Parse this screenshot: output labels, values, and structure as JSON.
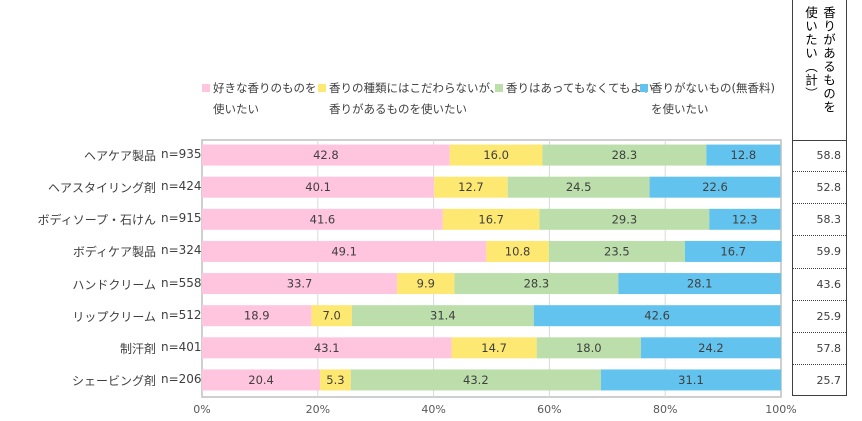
{
  "chart_data": {
    "type": "bar",
    "orientation": "horizontal",
    "stacked": "percent",
    "categories": [
      "ヘアケア製品",
      "ヘアスタイリング剤",
      "ボディソープ・石けん",
      "ボディケア製品",
      "ハンドクリーム",
      "リップクリーム",
      "制汗剤",
      "シェービング剤"
    ],
    "n_labels": [
      "n=935",
      "n=424",
      "n=915",
      "n=324",
      "n=558",
      "n=512",
      "n=401",
      "n=206"
    ],
    "series": [
      {
        "name": "好きな香りのものを使いたい",
        "legend_lines": [
          "好きな香りのものを",
          "使いたい"
        ],
        "color": "#FFC4DE",
        "values": [
          42.8,
          40.1,
          41.6,
          49.1,
          33.7,
          18.9,
          43.1,
          20.4
        ],
        "labels": [
          "42.8",
          "40.1",
          "41.6",
          "49.1",
          "33.7",
          "18.9",
          "43.1",
          "20.4"
        ]
      },
      {
        "name": "香りの種類にはこだわらないが、香りがあるものを使いたい",
        "legend_lines": [
          "香りの種類にはこだわらないが、",
          "香りがあるものを使いたい"
        ],
        "color": "#FDE872",
        "values": [
          16.0,
          12.7,
          16.7,
          10.8,
          9.9,
          7.0,
          14.7,
          5.3
        ],
        "labels": [
          "16.0",
          "12.7",
          "16.7",
          "10.8",
          "9.9",
          "7.0",
          "14.7",
          "5.3"
        ]
      },
      {
        "name": "香りはあってもなくてもよい",
        "legend_lines": [
          "香りはあってもなくてもよい"
        ],
        "color": "#BBDEAB",
        "values": [
          28.3,
          24.5,
          29.3,
          23.5,
          28.3,
          31.4,
          18.0,
          43.2
        ],
        "labels": [
          "28.3",
          "24.5",
          "29.3",
          "23.5",
          "28.3",
          "31.4",
          "18.0",
          "43.2"
        ]
      },
      {
        "name": "香りがないもの(無香料)を使いたい",
        "legend_lines": [
          "香りがないもの(無香料)",
          "を使いたい"
        ],
        "color": "#63C3EF",
        "values": [
          12.8,
          22.6,
          12.3,
          16.7,
          28.1,
          42.6,
          24.2,
          31.1
        ],
        "labels": [
          "12.8",
          "22.6",
          "12.3",
          "16.7",
          "28.1",
          "42.6",
          "24.2",
          "31.1"
        ]
      }
    ],
    "xlim": [
      0,
      100
    ],
    "x_ticks": [
      "0%",
      "20%",
      "40%",
      "60%",
      "80%",
      "100%"
    ],
    "grid": true,
    "legend_position": "top",
    "summary_column": {
      "header_col1": "香りがあるものを",
      "header_col2": "使いたい（計）",
      "values": [
        "58.8",
        "52.8",
        "58.3",
        "59.9",
        "43.6",
        "25.9",
        "57.8",
        "25.7"
      ]
    }
  }
}
